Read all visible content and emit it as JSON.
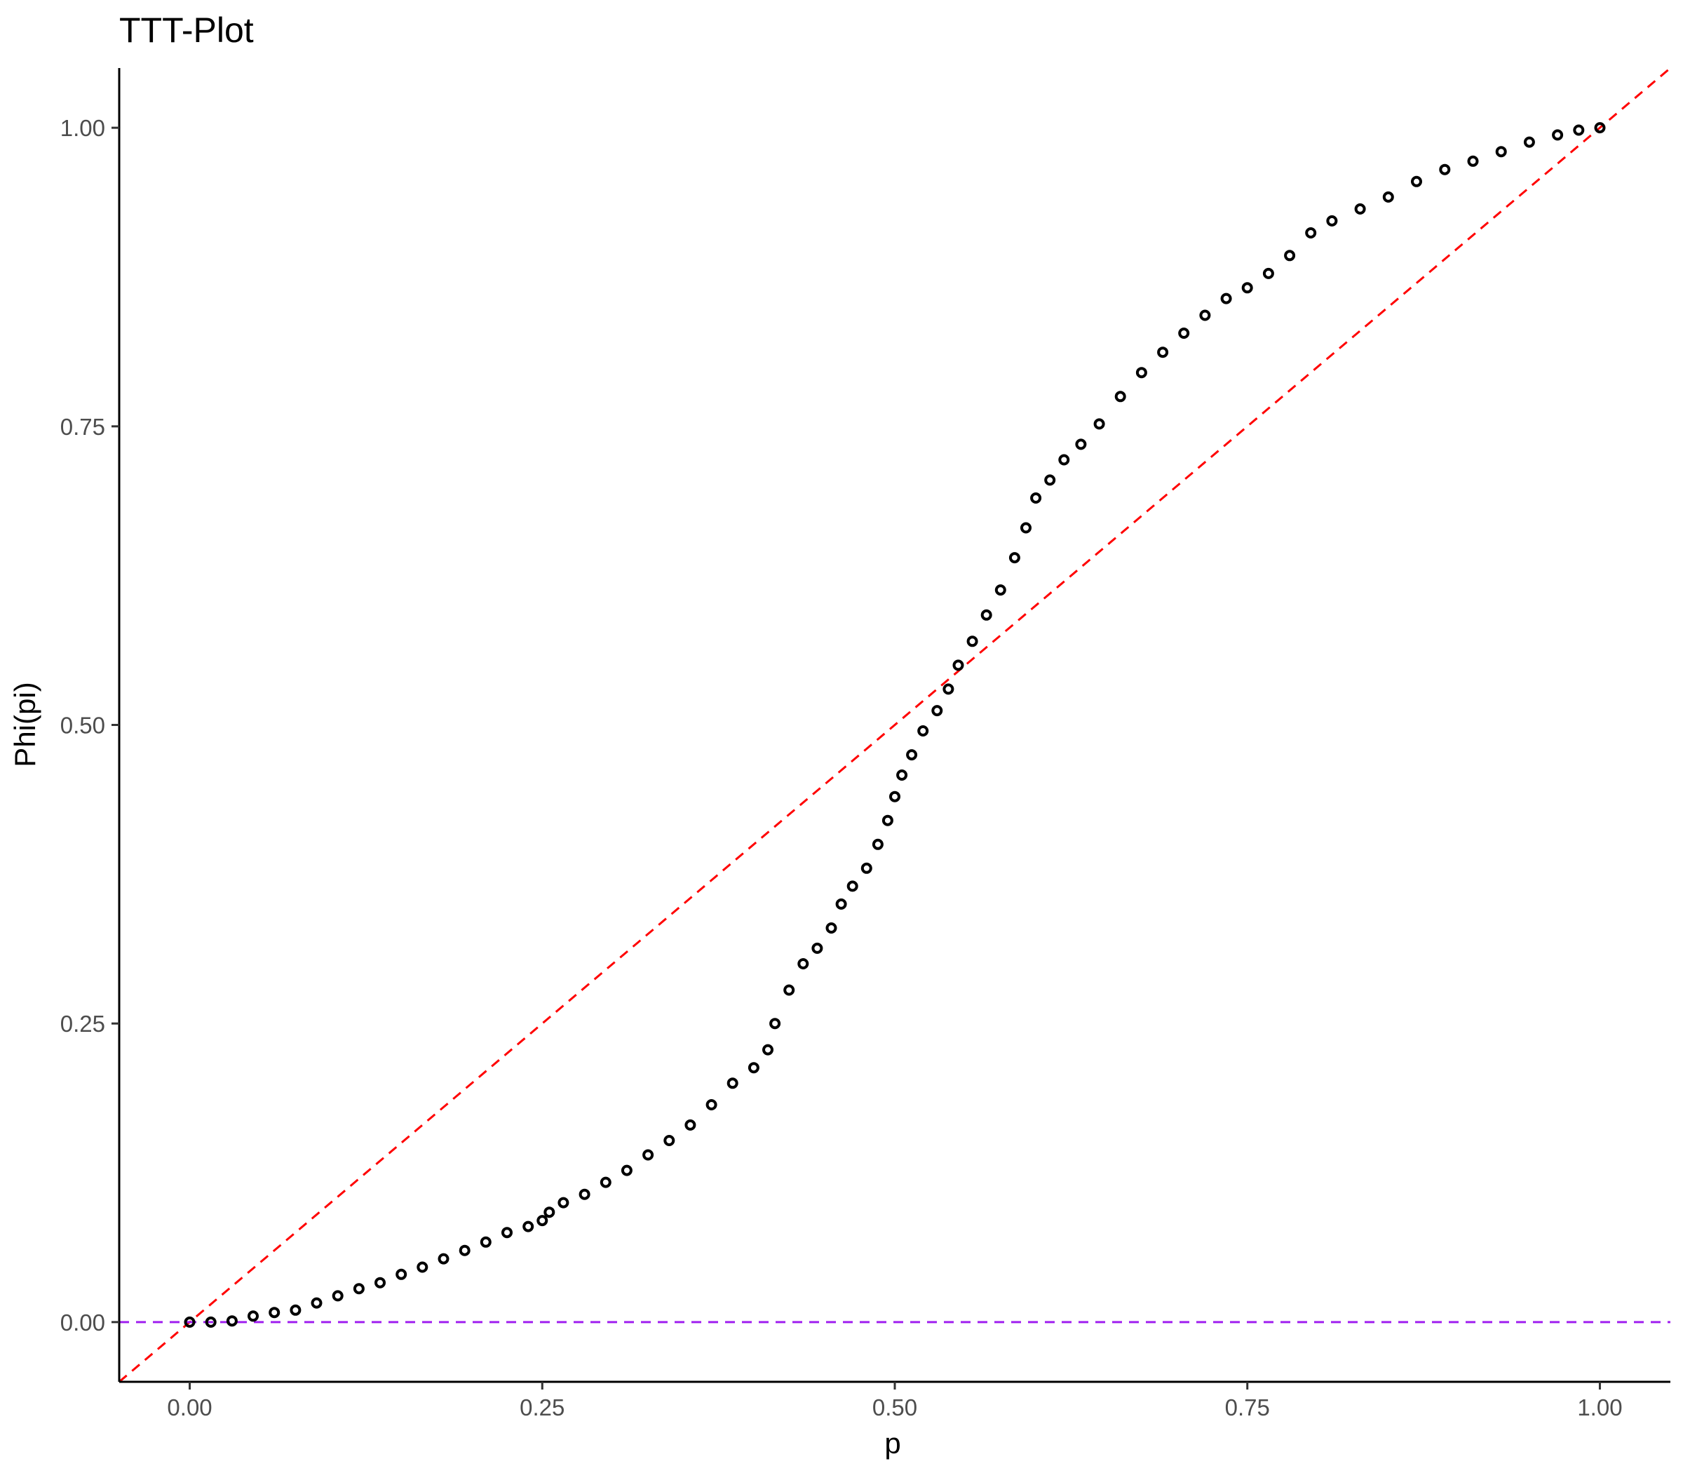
{
  "chart_data": {
    "type": "scatter",
    "title": "TTT-Plot",
    "xlabel": "p",
    "ylabel": "Phi(pi)",
    "xlim": [
      -0.05,
      1.05
    ],
    "ylim": [
      -0.05,
      1.05
    ],
    "xticks": [
      {
        "value": 0.0,
        "label": "0.00"
      },
      {
        "value": 0.25,
        "label": "0.25"
      },
      {
        "value": 0.5,
        "label": "0.50"
      },
      {
        "value": 0.75,
        "label": "0.75"
      },
      {
        "value": 1.0,
        "label": "1.00"
      }
    ],
    "yticks": [
      {
        "value": 0.0,
        "label": "0.00"
      },
      {
        "value": 0.25,
        "label": "0.25"
      },
      {
        "value": 0.5,
        "label": "0.50"
      },
      {
        "value": 0.75,
        "label": "0.75"
      },
      {
        "value": 1.0,
        "label": "1.00"
      }
    ],
    "grid": false,
    "legend": "none",
    "reference_lines": [
      {
        "kind": "diagonal",
        "equation": "y = x",
        "color": "#ff0000",
        "style": "dashed"
      },
      {
        "kind": "horizontal",
        "y": 0,
        "color": "#a020f0",
        "style": "dashed"
      }
    ],
    "series": [
      {
        "marker": "open-circle",
        "color": "#000000",
        "x": [
          0.0,
          0.015,
          0.03,
          0.045,
          0.06,
          0.075,
          0.09,
          0.105,
          0.12,
          0.135,
          0.15,
          0.165,
          0.18,
          0.195,
          0.21,
          0.225,
          0.24,
          0.25,
          0.255,
          0.265,
          0.28,
          0.295,
          0.31,
          0.325,
          0.34,
          0.355,
          0.37,
          0.385,
          0.4,
          0.41,
          0.415,
          0.425,
          0.435,
          0.445,
          0.455,
          0.462,
          0.47,
          0.48,
          0.488,
          0.495,
          0.5,
          0.505,
          0.512,
          0.52,
          0.53,
          0.538,
          0.545,
          0.555,
          0.565,
          0.575,
          0.585,
          0.593,
          0.6,
          0.61,
          0.62,
          0.632,
          0.645,
          0.66,
          0.675,
          0.69,
          0.705,
          0.72,
          0.735,
          0.75,
          0.765,
          0.78,
          0.795,
          0.81,
          0.83,
          0.85,
          0.87,
          0.89,
          0.91,
          0.93,
          0.95,
          0.97,
          0.985,
          1.0
        ],
        "y": [
          0.0,
          0.0,
          0.001,
          0.005,
          0.008,
          0.01,
          0.016,
          0.022,
          0.028,
          0.033,
          0.04,
          0.046,
          0.053,
          0.06,
          0.067,
          0.075,
          0.08,
          0.085,
          0.092,
          0.1,
          0.107,
          0.117,
          0.127,
          0.14,
          0.152,
          0.165,
          0.182,
          0.2,
          0.213,
          0.228,
          0.25,
          0.278,
          0.3,
          0.313,
          0.33,
          0.35,
          0.365,
          0.38,
          0.4,
          0.42,
          0.44,
          0.458,
          0.475,
          0.495,
          0.512,
          0.53,
          0.55,
          0.57,
          0.592,
          0.613,
          0.64,
          0.665,
          0.69,
          0.705,
          0.722,
          0.735,
          0.752,
          0.775,
          0.795,
          0.812,
          0.828,
          0.843,
          0.857,
          0.866,
          0.878,
          0.893,
          0.912,
          0.922,
          0.932,
          0.942,
          0.955,
          0.965,
          0.972,
          0.98,
          0.988,
          0.994,
          0.998,
          1.0
        ]
      }
    ]
  }
}
